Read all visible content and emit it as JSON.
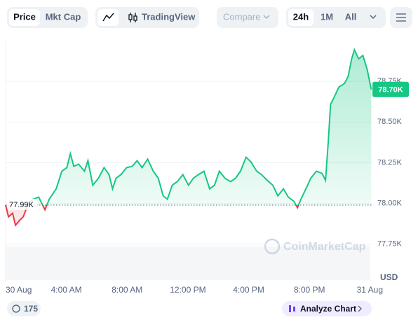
{
  "ui": {
    "tabs": [
      "Price",
      "Mkt Cap"
    ],
    "chart_tool": "TradingView",
    "compare": "Compare",
    "ranges": [
      "24h",
      "1M",
      "All"
    ],
    "currency": "USD",
    "watermark": "CoinMarketCap",
    "badge_count": "175",
    "analyze": "Analyze Chart"
  },
  "chart_data": {
    "type": "line",
    "x": [
      0,
      0.19,
      0.46,
      0.65,
      0.93,
      1.16,
      1.48,
      1.81,
      2.18,
      2.59,
      2.87,
      3.33,
      3.7,
      4.03,
      4.26,
      4.49,
      4.81,
      5.19,
      5.42,
      5.74,
      6.11,
      6.48,
      6.81,
      7.04,
      7.27,
      7.59,
      7.96,
      8.33,
      8.66,
      8.98,
      9.35,
      9.72,
      10.05,
      10.37,
      10.65,
      10.97,
      11.3,
      11.67,
      12.04,
      12.36,
      12.69,
      13.06,
      13.43,
      13.75,
      14.07,
      14.44,
      14.81,
      15.14,
      15.46,
      15.83,
      16.16,
      16.53,
      16.85,
      17.22,
      17.59,
      17.92,
      18.29,
      18.61,
      18.98,
      19.21,
      19.44,
      19.77,
      20.09,
      20.46,
      20.83,
      21.06,
      21.25,
      21.39,
      21.62,
      21.94,
      22.31,
      22.55,
      22.78,
      22.96,
      23.24,
      23.52,
      23.8,
      24.07
    ],
    "series": [
      {
        "name": "Price",
        "color": "#16c784",
        "down_color": "#ea3943",
        "values": [
          77990,
          77918,
          77940,
          77866,
          77897,
          77918,
          77996,
          78026,
          78039,
          77961,
          78026,
          78090,
          78198,
          78220,
          78306,
          78228,
          78241,
          78198,
          78263,
          78112,
          78155,
          78220,
          78177,
          78090,
          78155,
          78177,
          78220,
          78228,
          78263,
          78220,
          78272,
          78198,
          78155,
          78047,
          78026,
          78112,
          78134,
          78177,
          78112,
          78155,
          78177,
          78198,
          78090,
          78112,
          78198,
          78155,
          78134,
          78155,
          78198,
          78284,
          78254,
          78198,
          78177,
          78142,
          78112,
          78047,
          78090,
          78039,
          78013,
          77974,
          78026,
          78090,
          78155,
          78198,
          78185,
          78142,
          78392,
          78608,
          78651,
          78715,
          78737,
          78780,
          78888,
          78944,
          78888,
          78909,
          78823,
          78700
        ]
      }
    ],
    "reference_line": {
      "value": 77990,
      "label": "77.99K"
    },
    "price_tag": {
      "value": 78700,
      "label": "78.70K"
    },
    "xlim": [
      0,
      24.1
    ],
    "xticks": [
      {
        "value": 0,
        "label": "30 Aug"
      },
      {
        "value": 4,
        "label": "4:00 AM"
      },
      {
        "value": 8,
        "label": "8:00 AM"
      },
      {
        "value": 12,
        "label": "12:00 PM"
      },
      {
        "value": 16,
        "label": "4:00 PM"
      },
      {
        "value": 20,
        "label": "8:00 PM"
      },
      {
        "value": 24,
        "label": "31 Aug"
      }
    ],
    "ylim": [
      77530,
      79000
    ],
    "yticks": [
      {
        "value": 77750,
        "label": "77.75K"
      },
      {
        "value": 78000,
        "label": "78.00K"
      },
      {
        "value": 78250,
        "label": "78.25K"
      },
      {
        "value": 78500,
        "label": "78.50K"
      },
      {
        "value": 78750,
        "label": "78.75K"
      }
    ],
    "grid": true
  }
}
